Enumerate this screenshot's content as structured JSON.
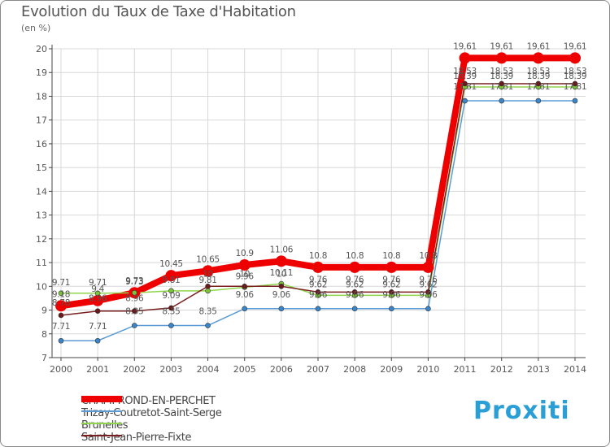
{
  "header": {
    "title": "Evolution du Taux de Taxe d'Habitation",
    "unit": "(en %)"
  },
  "logo": {
    "text": "Proxiti"
  },
  "colors": {
    "grid": "#d8d8d8",
    "axis": "#444444",
    "text": "#555555"
  },
  "chart_data": {
    "type": "line",
    "title": "Evolution du Taux de Taxe d'Habitation",
    "ylabel": "(en %)",
    "xlabel": "",
    "ylim": [
      7,
      20
    ],
    "yticks": [
      "7",
      "8",
      "9",
      "10",
      "11",
      "12",
      "13",
      "14",
      "15",
      "16",
      "17",
      "18",
      "19",
      "20"
    ],
    "x": [
      "2000",
      "2001",
      "2002",
      "2003",
      "2004",
      "2005",
      "2006",
      "2007",
      "2008",
      "2009",
      "2010",
      "2011",
      "2012",
      "2013",
      "2014"
    ],
    "series": [
      {
        "name": "CHAMPROND-EN-PERCHET",
        "color": "#ee0000",
        "marker": "#ee0000",
        "width": 8,
        "radius": 7,
        "values": [
          9.18,
          9.4,
          9.73,
          10.45,
          10.65,
          10.9,
          11.06,
          10.8,
          10.8,
          10.8,
          10.8,
          19.61,
          19.61,
          19.61,
          19.61
        ],
        "labels": [
          "9.18",
          "9.4",
          "9.73",
          "10.45",
          "10.65",
          "10.9",
          "11.06",
          "10.8",
          "10.8",
          "10.8",
          "10.8",
          "19.61",
          "19.61",
          "19.61",
          "19.61"
        ]
      },
      {
        "name": "Trizay-Coutretot-Saint-Serge",
        "color": "#5b9bd5",
        "marker": "#3a86c9",
        "width": 1.5,
        "radius": 3,
        "values": [
          7.71,
          7.71,
          8.35,
          8.35,
          8.35,
          9.06,
          9.06,
          9.06,
          9.06,
          9.06,
          9.06,
          17.81,
          17.81,
          17.81,
          17.81
        ],
        "labels": [
          "7.71",
          "7.71",
          "8.35",
          "8.35",
          "8.35",
          "9.06",
          "9.06",
          "9.06",
          "9.06",
          "9.06",
          "9.06",
          "17.81",
          "17.81",
          "17.81",
          "17.81"
        ]
      },
      {
        "name": "Brunelles",
        "color": "#8fd44a",
        "marker": "#7cc43a",
        "width": 1.5,
        "radius": 3,
        "values": [
          9.71,
          9.71,
          9.73,
          9.81,
          9.81,
          9.96,
          10.11,
          9.62,
          9.62,
          9.62,
          9.62,
          18.39,
          18.39,
          18.39,
          18.39
        ],
        "labels": [
          "9.71",
          "9.71",
          "9.73",
          "9.81",
          "9.81",
          "9.96",
          "10.11",
          "9.62",
          "9.62",
          "9.62",
          "9.62",
          "18.39",
          "18.39",
          "18.39",
          "18.39"
        ]
      },
      {
        "name": "Saint-Jean-Pierre-Fixte",
        "color": "#7a1f1f",
        "marker": "#6b1a1a",
        "width": 1.5,
        "radius": 3,
        "values": [
          8.78,
          8.96,
          8.96,
          9.09,
          10.0,
          10.0,
          10.0,
          9.76,
          9.76,
          9.76,
          9.76,
          18.53,
          18.53,
          18.53,
          18.53
        ],
        "labels": [
          "8.78",
          "8.96",
          "8.96",
          "9.09",
          "10",
          "10",
          "10",
          "9.76",
          "9.76",
          "9.76",
          "9.76",
          "18.53",
          "18.53",
          "18.53",
          "18.53"
        ]
      }
    ],
    "legend": [
      "CHAMPROND-EN-PERCHET",
      "Trizay-Coutretot-Saint-Serge",
      "Brunelles",
      "Saint-Jean-Pierre-Fixte"
    ]
  }
}
